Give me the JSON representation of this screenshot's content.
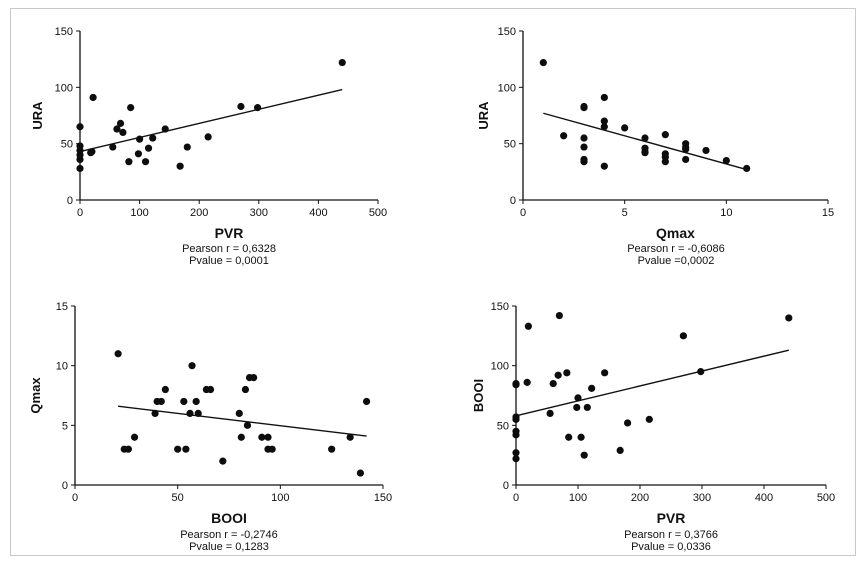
{
  "chart_data": [
    {
      "type": "scatter",
      "xlabel": "PVR",
      "ylabel": "URA",
      "xlim": [
        0,
        500
      ],
      "ylim": [
        0,
        150
      ],
      "xticks": [
        "0",
        "100",
        "200",
        "300",
        "400",
        "500"
      ],
      "yticks": [
        "0",
        "50",
        "100",
        "150"
      ],
      "points": [
        [
          0,
          28
        ],
        [
          0,
          36
        ],
        [
          0,
          40
        ],
        [
          0,
          44
        ],
        [
          0,
          48
        ],
        [
          0,
          65
        ],
        [
          18,
          42
        ],
        [
          20,
          43
        ],
        [
          22,
          91
        ],
        [
          55,
          47
        ],
        [
          62,
          63
        ],
        [
          68,
          68
        ],
        [
          72,
          60
        ],
        [
          82,
          34
        ],
        [
          85,
          82
        ],
        [
          98,
          41
        ],
        [
          100,
          54
        ],
        [
          110,
          34
        ],
        [
          115,
          46
        ],
        [
          122,
          55
        ],
        [
          143,
          63
        ],
        [
          168,
          30
        ],
        [
          180,
          47
        ],
        [
          215,
          56
        ],
        [
          270,
          83
        ],
        [
          298,
          82
        ],
        [
          440,
          122
        ]
      ],
      "fit": [
        [
          0,
          43
        ],
        [
          440,
          98
        ]
      ],
      "annotations": [
        "Pearson r = 0,6328",
        "Pvalue = 0,0001"
      ]
    },
    {
      "type": "scatter",
      "xlabel": "Qmax",
      "ylabel": "URA",
      "xlim": [
        0,
        15
      ],
      "ylim": [
        0,
        150
      ],
      "xticks": [
        "0",
        "5",
        "10",
        "15"
      ],
      "yticks": [
        "0",
        "50",
        "100",
        "150"
      ],
      "points": [
        [
          1,
          122
        ],
        [
          2,
          57
        ],
        [
          3,
          83
        ],
        [
          3,
          82
        ],
        [
          3,
          55
        ],
        [
          3,
          47
        ],
        [
          3,
          36
        ],
        [
          3,
          34
        ],
        [
          4,
          91
        ],
        [
          4,
          70
        ],
        [
          4,
          65
        ],
        [
          4,
          30
        ],
        [
          5,
          64
        ],
        [
          6,
          55
        ],
        [
          6,
          46
        ],
        [
          6,
          43
        ],
        [
          6,
          42
        ],
        [
          7,
          58
        ],
        [
          7,
          41
        ],
        [
          7,
          38
        ],
        [
          7,
          34
        ],
        [
          8,
          50
        ],
        [
          8,
          47
        ],
        [
          8,
          45
        ],
        [
          8,
          36
        ],
        [
          9,
          44
        ],
        [
          10,
          35
        ],
        [
          11,
          28
        ]
      ],
      "fit": [
        [
          1,
          77
        ],
        [
          11,
          27
        ]
      ],
      "annotations": [
        "Pearson r = -0,6086",
        "Pvalue =0,0002"
      ]
    },
    {
      "type": "scatter",
      "xlabel": "BOOI",
      "ylabel": "Qmax",
      "xlim": [
        0,
        150
      ],
      "ylim": [
        0,
        15
      ],
      "xticks": [
        "0",
        "50",
        "100",
        "150"
      ],
      "yticks": [
        "0",
        "5",
        "10",
        "15"
      ],
      "points": [
        [
          21,
          11
        ],
        [
          24,
          3
        ],
        [
          26,
          3
        ],
        [
          29,
          4
        ],
        [
          39,
          6
        ],
        [
          40,
          7
        ],
        [
          42,
          7
        ],
        [
          44,
          8
        ],
        [
          50,
          3
        ],
        [
          53,
          7
        ],
        [
          54,
          3
        ],
        [
          56,
          6
        ],
        [
          57,
          10
        ],
        [
          59,
          7
        ],
        [
          60,
          6
        ],
        [
          64,
          8
        ],
        [
          66,
          8
        ],
        [
          72,
          2
        ],
        [
          80,
          6
        ],
        [
          81,
          4
        ],
        [
          83,
          8
        ],
        [
          84,
          5
        ],
        [
          85,
          9
        ],
        [
          87,
          9
        ],
        [
          91,
          4
        ],
        [
          94,
          4
        ],
        [
          94,
          3
        ],
        [
          96,
          3
        ],
        [
          125,
          3
        ],
        [
          134,
          4
        ],
        [
          139,
          1
        ],
        [
          142,
          7
        ]
      ],
      "fit": [
        [
          21,
          6.6
        ],
        [
          142,
          4.1
        ]
      ],
      "annotations": [
        "Pearson r = -0,2746",
        "Pvalue = 0,1283"
      ]
    },
    {
      "type": "scatter",
      "xlabel": "PVR",
      "ylabel": "BOOI",
      "xlim": [
        0,
        500
      ],
      "ylim": [
        0,
        150
      ],
      "xticks": [
        "0",
        "100",
        "200",
        "300",
        "400",
        "500"
      ],
      "yticks": [
        "0",
        "50",
        "100",
        "150"
      ],
      "points": [
        [
          0,
          22
        ],
        [
          0,
          27
        ],
        [
          0,
          42
        ],
        [
          0,
          45
        ],
        [
          0,
          55
        ],
        [
          0,
          57
        ],
        [
          0,
          84
        ],
        [
          0,
          85
        ],
        [
          18,
          86
        ],
        [
          20,
          133
        ],
        [
          55,
          60
        ],
        [
          60,
          85
        ],
        [
          68,
          92
        ],
        [
          70,
          142
        ],
        [
          82,
          94
        ],
        [
          85,
          40
        ],
        [
          98,
          65
        ],
        [
          100,
          73
        ],
        [
          105,
          40
        ],
        [
          110,
          25
        ],
        [
          115,
          65
        ],
        [
          122,
          81
        ],
        [
          143,
          94
        ],
        [
          168,
          29
        ],
        [
          180,
          52
        ],
        [
          215,
          55
        ],
        [
          270,
          125
        ],
        [
          298,
          95
        ],
        [
          440,
          140
        ]
      ],
      "fit": [
        [
          0,
          58
        ],
        [
          440,
          113
        ]
      ],
      "annotations": [
        "Pearson r = 0,3766",
        "Pvalue = 0,0336"
      ]
    }
  ]
}
